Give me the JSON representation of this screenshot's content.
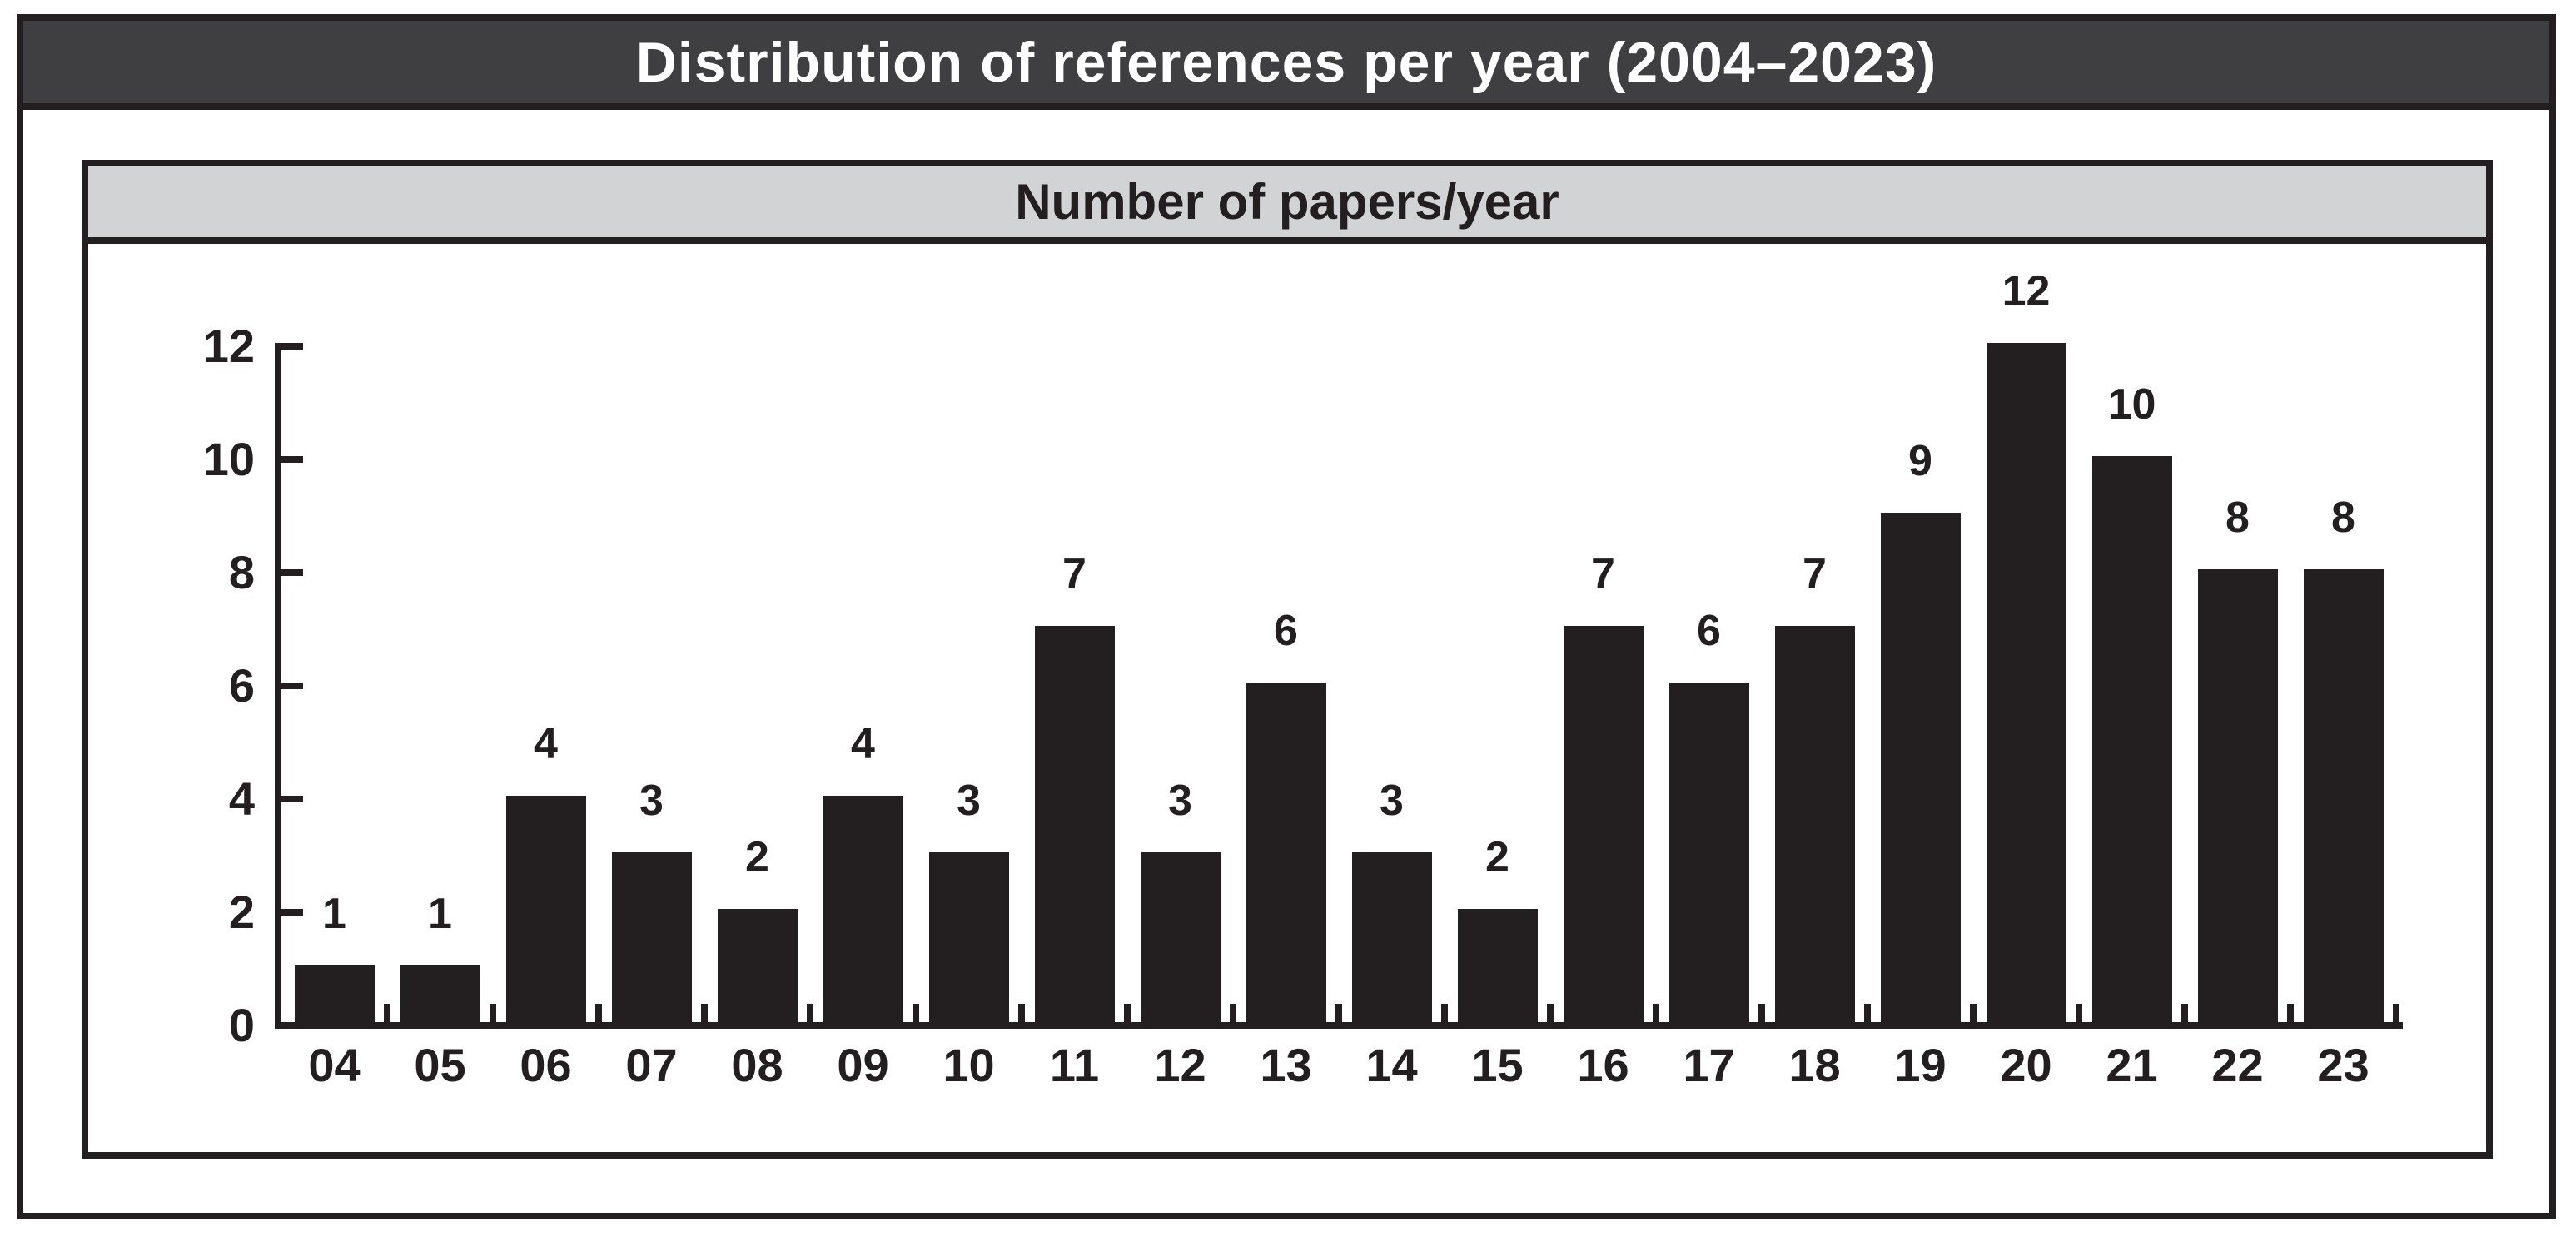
{
  "figure": {
    "title": "Distribution of references per year (2004–2023)",
    "subtitle": "Number of papers/year"
  },
  "colors": {
    "background": "#ffffff",
    "border": "#231f20",
    "bar": "#231f20",
    "title_bar_bg": "#3f3e40",
    "title_text": "#ffffff",
    "subtitle_bg": "#d1d3d4",
    "subtitle_text": "#231f20"
  },
  "chart_data": {
    "type": "bar",
    "title": "Number of papers/year",
    "categories": [
      "04",
      "05",
      "06",
      "07",
      "08",
      "09",
      "10",
      "11",
      "12",
      "13",
      "14",
      "15",
      "16",
      "17",
      "18",
      "19",
      "20",
      "21",
      "22",
      "23"
    ],
    "values": [
      1,
      1,
      4,
      3,
      2,
      4,
      3,
      7,
      3,
      6,
      3,
      2,
      7,
      6,
      7,
      9,
      12,
      10,
      8,
      8
    ],
    "xlabel": "",
    "ylabel": "",
    "ylim": [
      0,
      12
    ],
    "yticks": [
      0,
      2,
      4,
      6,
      8,
      10,
      12
    ],
    "bar_labels": true,
    "grid": false,
    "legend": false,
    "bar_color": "#231f20"
  }
}
